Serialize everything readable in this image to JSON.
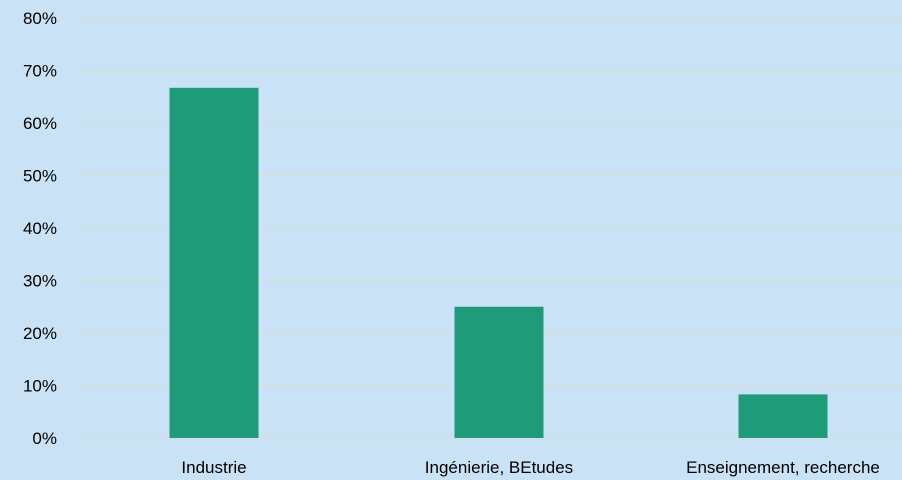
{
  "chart_data": {
    "type": "bar",
    "title": "",
    "xlabel": "",
    "ylabel": "",
    "categories": [
      "Industrie",
      "Ingénierie, BEtudes",
      "Enseignement, recherche"
    ],
    "series": [
      {
        "values": [
          0.667,
          0.25,
          0.083
        ]
      }
    ],
    "ylim": [
      0,
      0.8
    ],
    "yticks": [
      {
        "value": 0,
        "label": "0%"
      },
      {
        "value": 0.1,
        "label": "10%"
      },
      {
        "value": 0.2,
        "label": "20%"
      },
      {
        "value": 0.3,
        "label": "30%"
      },
      {
        "value": 0.4,
        "label": "40%"
      },
      {
        "value": 0.5,
        "label": "50%"
      },
      {
        "value": 0.6,
        "label": "60%"
      },
      {
        "value": 0.7,
        "label": "70%"
      },
      {
        "value": 0.8,
        "label": "80%"
      }
    ],
    "grid": true,
    "legend": "none",
    "colors": {
      "background": "#c9e2f5",
      "bar": "#1e9b78",
      "grid": "#dddccf"
    }
  }
}
